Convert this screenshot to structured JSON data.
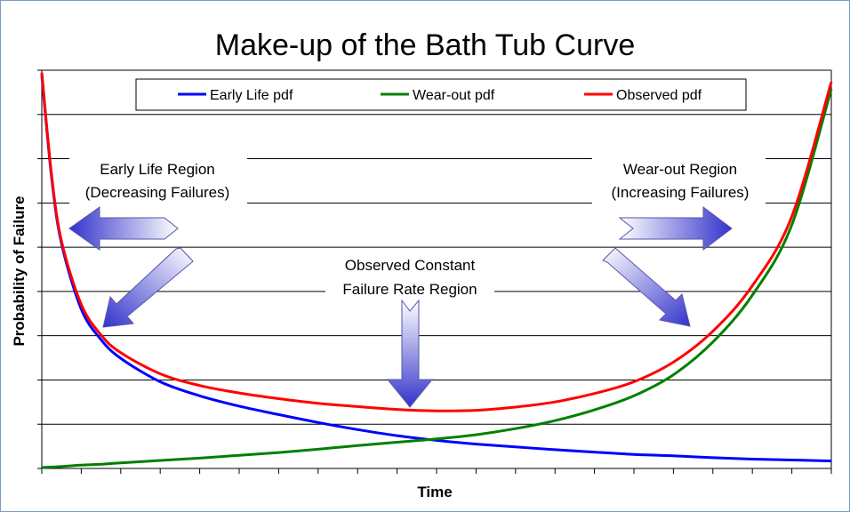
{
  "colors": {
    "early": "#0000ff",
    "wearout": "#008000",
    "observed": "#ff0000",
    "arrow_dark": "#3333cc",
    "arrow_light": "#ffffff",
    "grid": "#000000"
  },
  "chart_data": {
    "type": "line",
    "title": "Make-up of the Bath Tub Curve",
    "xlabel": "Time",
    "ylabel": "Probability of Failure",
    "xlim": [
      0,
      20
    ],
    "ylim": [
      0,
      8.5
    ],
    "grid": true,
    "legend": "top",
    "x": [
      0,
      0.25,
      0.5,
      1,
      1.5,
      2,
      3,
      4,
      5,
      6,
      7,
      8,
      9,
      10,
      11,
      12,
      13,
      14,
      15,
      16,
      17,
      18,
      19,
      20
    ],
    "series": [
      {
        "name": "Early Life pdf",
        "color_key": "early",
        "values": [
          8.4,
          6.2,
          4.8,
          3.4,
          2.75,
          2.35,
          1.85,
          1.55,
          1.33,
          1.15,
          0.98,
          0.83,
          0.7,
          0.6,
          0.52,
          0.46,
          0.4,
          0.35,
          0.3,
          0.27,
          0.23,
          0.2,
          0.18,
          0.16
        ]
      },
      {
        "name": "Wear-out pdf",
        "color_key": "wearout",
        "values": [
          0.02,
          0.03,
          0.04,
          0.07,
          0.09,
          0.12,
          0.17,
          0.22,
          0.28,
          0.34,
          0.41,
          0.49,
          0.56,
          0.63,
          0.72,
          0.85,
          1.02,
          1.25,
          1.55,
          2.0,
          2.7,
          3.7,
          5.2,
          8.1
        ]
      },
      {
        "name": "Observed pdf",
        "color_key": "observed",
        "values": [
          8.45,
          6.25,
          4.85,
          3.5,
          2.85,
          2.47,
          2.02,
          1.77,
          1.61,
          1.49,
          1.39,
          1.32,
          1.26,
          1.23,
          1.24,
          1.31,
          1.42,
          1.6,
          1.85,
          2.27,
          2.93,
          3.9,
          5.38,
          8.25
        ]
      }
    ],
    "annotations": [
      {
        "lines": [
          "Early Life Region",
          "(Decreasing Failures)"
        ]
      },
      {
        "lines": [
          "Wear-out Region",
          "(Increasing Failures)"
        ]
      },
      {
        "lines": [
          "Observed Constant",
          "Failure Rate Region"
        ]
      }
    ]
  }
}
